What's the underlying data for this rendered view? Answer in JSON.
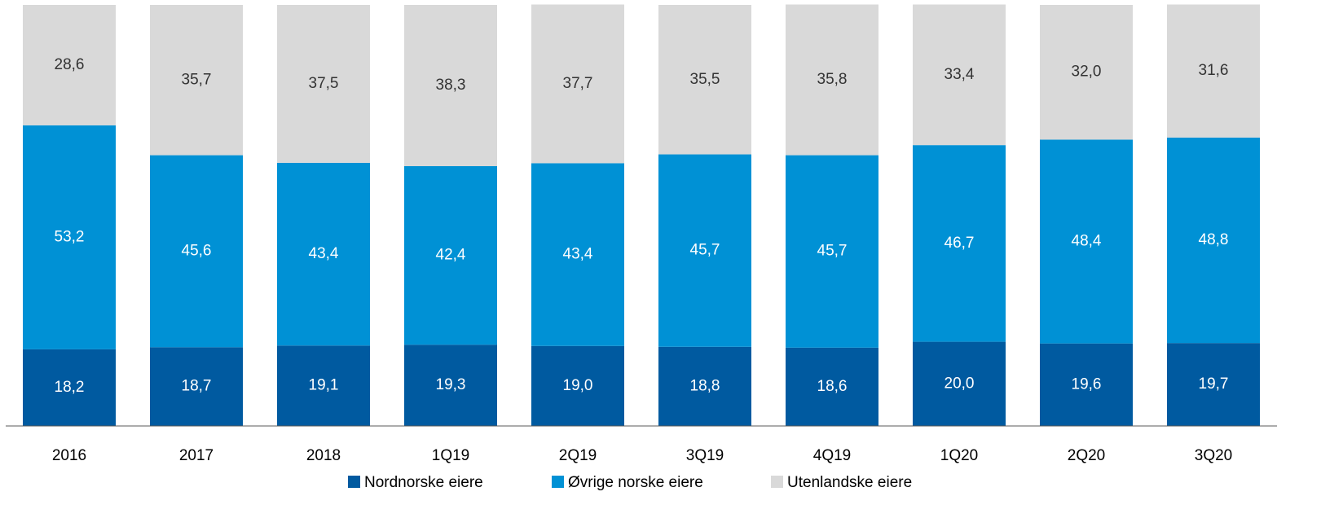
{
  "chart_data": {
    "type": "stacked_bar",
    "categories": [
      "2016",
      "2017",
      "2018",
      "1Q19",
      "2Q19",
      "3Q19",
      "4Q19",
      "1Q20",
      "2Q20",
      "3Q20"
    ],
    "ylim": [
      0,
      100
    ],
    "series": [
      {
        "name": "Nordnorske eiere",
        "color": "#005aa0",
        "label_color": "#ffffff",
        "values": [
          18.2,
          18.7,
          19.1,
          19.3,
          19.0,
          18.8,
          18.6,
          20.0,
          19.6,
          19.7
        ],
        "value_labels": [
          "18,2",
          "18,7",
          "19,1",
          "19,3",
          "19,0",
          "18,8",
          "18,6",
          "20,0",
          "19,6",
          "19,7"
        ]
      },
      {
        "name": "Øvrige norske eiere",
        "color": "#0091d5",
        "label_color": "#ffffff",
        "values": [
          53.2,
          45.6,
          43.4,
          42.4,
          43.4,
          45.7,
          45.7,
          46.7,
          48.4,
          48.8
        ],
        "value_labels": [
          "53,2",
          "45,6",
          "43,4",
          "42,4",
          "43,4",
          "45,7",
          "45,7",
          "46,7",
          "48,4",
          "48,8"
        ]
      },
      {
        "name": "Utenlandske eiere",
        "color": "#d9d9d9",
        "label_color": "#333333",
        "values": [
          28.6,
          35.7,
          37.5,
          38.3,
          37.7,
          35.5,
          35.8,
          33.4,
          32.0,
          31.6
        ],
        "value_labels": [
          "28,6",
          "35,7",
          "37,5",
          "38,3",
          "37,7",
          "35,5",
          "35,8",
          "33,4",
          "32,0",
          "31,6"
        ]
      }
    ]
  }
}
